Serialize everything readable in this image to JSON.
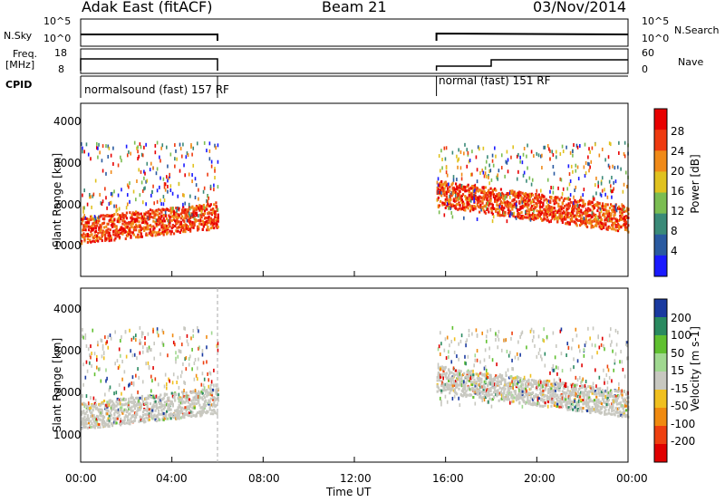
{
  "header": {
    "site": "Adak East (fitACF)",
    "beam": "Beam 21",
    "date": "03/Nov/2014"
  },
  "aux_panels": {
    "nsky_label": "N.Sky",
    "nsky_ticks": [
      "10^5",
      "10^0"
    ],
    "nsearch_label": "N.Search",
    "nsearch_ticks": [
      "10^5",
      "10^0"
    ],
    "freq_label_1": "Freq.",
    "freq_label_2": "[MHz]",
    "freq_ticks": [
      "18",
      "8"
    ],
    "nave_label": "Nave",
    "nave_ticks": [
      "60",
      "0"
    ],
    "cpid_label": "CPID",
    "cpid_segments": [
      "normalsound (fast) 157 RF",
      "normal (fast) 151 RF"
    ]
  },
  "chart_data": [
    {
      "type": "heatmap",
      "name": "Power",
      "ylabel": "Slant Range [km]",
      "y_ticks": [
        "1000",
        "2000",
        "3000",
        "4000"
      ],
      "x_ticks": [
        "00:00",
        "04:00",
        "08:00",
        "12:00",
        "16:00",
        "20:00",
        "00:00"
      ],
      "xlabel": "Time UT",
      "colorbar_label": "Power [dB]",
      "colorbar_ticks": [
        "4",
        "8",
        "12",
        "16",
        "20",
        "24",
        "28"
      ],
      "colors": [
        "#1a1aff",
        "#2a5aa0",
        "#3a8a78",
        "#7bbd52",
        "#e0c21f",
        "#f08a18",
        "#ee3a10",
        "#e80000"
      ],
      "data_intervals_hours": [
        [
          0.0,
          6.0
        ],
        [
          15.6,
          24.0
        ]
      ]
    },
    {
      "type": "heatmap",
      "name": "Velocity",
      "ylabel": "Slant Range [km]",
      "y_ticks": [
        "1000",
        "2000",
        "3000",
        "4000"
      ],
      "x_ticks": [
        "00:00",
        "04:00",
        "08:00",
        "12:00",
        "16:00",
        "20:00",
        "00:00"
      ],
      "xlabel": "Time UT",
      "colorbar_label": "Velocity [m s-1]",
      "colorbar_ticks": [
        "200",
        "100",
        "50",
        "15",
        "-15",
        "-50",
        "-100",
        "-200"
      ],
      "colors": [
        "#1a3aa0",
        "#2a8a60",
        "#60c030",
        "#a0d890",
        "#c8c8c0",
        "#f0c020",
        "#f08a10",
        "#ee4010",
        "#e00000"
      ],
      "data_intervals_hours": [
        [
          0.0,
          6.0
        ],
        [
          15.6,
          24.0
        ]
      ]
    }
  ]
}
